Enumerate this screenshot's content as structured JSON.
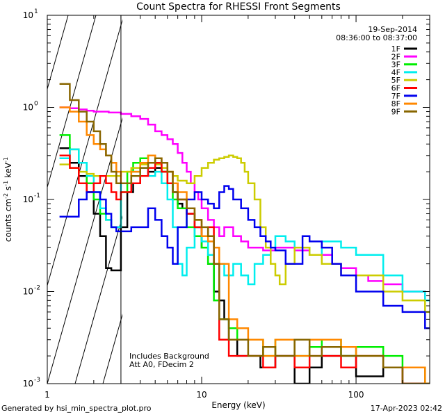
{
  "chart_data": {
    "type": "line",
    "title": "Count Spectra for RHESSI Front Segments",
    "xlabel": "Energy (keV)",
    "ylabel_parts": [
      "counts cm",
      "-2",
      " s",
      "-1",
      " keV",
      "-1"
    ],
    "xscale": "log",
    "yscale": "log",
    "xlim": [
      1,
      300
    ],
    "ylim": [
      0.001,
      10
    ],
    "x_ticks": [
      {
        "value": 1,
        "label": "1"
      },
      {
        "value": 10,
        "label": "10"
      },
      {
        "value": 100,
        "label": "100"
      }
    ],
    "y_ticks": [
      {
        "value": 0.001,
        "base": "10",
        "exp": "-3"
      },
      {
        "value": 0.01,
        "base": "10",
        "exp": "-2"
      },
      {
        "value": 0.1,
        "base": "10",
        "exp": "-1"
      },
      {
        "value": 1,
        "base": "10",
        "exp": "0"
      },
      {
        "value": 10,
        "base": "10",
        "exp": "1"
      }
    ],
    "hatched_region": [
      1,
      3
    ],
    "date": "19-Sep-2014",
    "time_range": "08:36:00 to 08:37:00",
    "annotations": [
      "Includes Background",
      "Att A0, FDecim 2"
    ],
    "series": [
      {
        "name": "1F",
        "color": "#000000",
        "x": [
          1.2,
          1.4,
          1.6,
          1.8,
          2.0,
          2.2,
          2.4,
          2.6,
          2.8,
          3.0,
          3.3,
          3.6,
          4.0,
          4.5,
          5.0,
          5.5,
          6.0,
          6.5,
          7.0,
          7.5,
          8.0,
          9.0,
          10,
          11,
          12,
          13,
          14,
          15,
          17,
          20,
          24,
          30,
          40,
          50,
          60,
          80,
          100,
          150,
          200,
          280
        ],
        "y": [
          0.36,
          0.25,
          0.18,
          0.12,
          0.07,
          0.04,
          0.018,
          0.017,
          0.017,
          0.05,
          0.12,
          0.15,
          0.18,
          0.2,
          0.22,
          0.2,
          0.15,
          0.12,
          0.09,
          0.08,
          0.07,
          0.05,
          0.03,
          0.02,
          0.01,
          0.008,
          0.005,
          0.003,
          0.002,
          0.002,
          0.0015,
          0.002,
          0.001,
          0.0015,
          0.002,
          0.002,
          0.0012,
          0.0015,
          0.001,
          0.001
        ]
      },
      {
        "name": "2F",
        "color": "#ff00ff",
        "x": [
          1.2,
          1.4,
          1.6,
          1.8,
          2.0,
          2.5,
          3.0,
          3.5,
          4.0,
          4.5,
          5.0,
          5.5,
          6.0,
          6.5,
          7.0,
          7.5,
          8.0,
          8.5,
          9.0,
          9.5,
          10,
          11,
          12,
          13,
          14,
          16,
          18,
          20,
          22,
          25,
          30,
          35,
          40,
          50,
          60,
          70,
          80,
          100,
          120,
          150,
          200,
          280
        ],
        "y": [
          1.0,
          0.98,
          0.95,
          0.92,
          0.9,
          0.88,
          0.85,
          0.8,
          0.75,
          0.65,
          0.55,
          0.5,
          0.45,
          0.4,
          0.32,
          0.25,
          0.2,
          0.15,
          0.12,
          0.1,
          0.08,
          0.06,
          0.05,
          0.04,
          0.05,
          0.04,
          0.035,
          0.03,
          0.03,
          0.028,
          0.03,
          0.03,
          0.028,
          0.025,
          0.025,
          0.02,
          0.018,
          0.015,
          0.013,
          0.012,
          0.01,
          0.008
        ]
      },
      {
        "name": "3F",
        "color": "#00ee00",
        "x": [
          1.2,
          1.4,
          1.6,
          1.8,
          2.0,
          2.2,
          2.4,
          2.6,
          2.8,
          3.0,
          3.3,
          3.6,
          4.0,
          4.5,
          5.0,
          5.5,
          6.0,
          6.5,
          7.0,
          8.0,
          9.0,
          10,
          11,
          12,
          13,
          15,
          17,
          20,
          25,
          30,
          40,
          50,
          60,
          80,
          100,
          150,
          200,
          280
        ],
        "y": [
          0.5,
          0.35,
          0.25,
          0.15,
          0.1,
          0.07,
          0.06,
          0.05,
          0.05,
          0.12,
          0.2,
          0.25,
          0.28,
          0.3,
          0.25,
          0.2,
          0.15,
          0.1,
          0.08,
          0.05,
          0.04,
          0.03,
          0.02,
          0.008,
          0.005,
          0.004,
          0.003,
          0.003,
          0.002,
          0.003,
          0.002,
          0.0025,
          0.003,
          0.002,
          0.0025,
          0.002,
          0.0015,
          0.001
        ]
      },
      {
        "name": "4F",
        "color": "#00eeee",
        "x": [
          1.2,
          1.4,
          1.6,
          1.8,
          2.0,
          2.2,
          2.4,
          2.6,
          2.8,
          3.0,
          3.5,
          4.0,
          4.5,
          5.0,
          5.5,
          6.0,
          6.5,
          7.0,
          7.5,
          8.0,
          9.0,
          10,
          11,
          12,
          14,
          16,
          18,
          20,
          22,
          25,
          28,
          30,
          35,
          40,
          50,
          60,
          80,
          100,
          150,
          200,
          280
        ],
        "y": [
          0.28,
          0.35,
          0.25,
          0.18,
          0.12,
          0.08,
          0.06,
          0.05,
          0.05,
          0.15,
          0.2,
          0.22,
          0.18,
          0.2,
          0.15,
          0.1,
          0.05,
          0.02,
          0.015,
          0.03,
          0.05,
          0.035,
          0.025,
          0.02,
          0.015,
          0.02,
          0.015,
          0.012,
          0.02,
          0.025,
          0.03,
          0.04,
          0.035,
          0.03,
          0.025,
          0.035,
          0.03,
          0.025,
          0.015,
          0.01,
          0.008
        ]
      },
      {
        "name": "5F",
        "color": "#cccc00",
        "x": [
          1.2,
          1.4,
          1.6,
          1.8,
          2.0,
          2.5,
          3.0,
          3.5,
          4.0,
          4.5,
          5.0,
          5.5,
          6.0,
          6.5,
          7.0,
          8.0,
          9.0,
          10,
          11,
          12,
          13,
          14,
          15,
          16,
          17,
          18,
          19,
          20,
          22,
          24,
          26,
          28,
          30,
          32,
          35,
          40,
          50,
          60,
          80,
          100,
          150,
          200,
          280
        ],
        "y": [
          0.24,
          0.22,
          0.2,
          0.19,
          0.18,
          0.18,
          0.2,
          0.22,
          0.24,
          0.25,
          0.24,
          0.22,
          0.2,
          0.18,
          0.16,
          0.15,
          0.18,
          0.22,
          0.25,
          0.27,
          0.28,
          0.29,
          0.3,
          0.29,
          0.28,
          0.25,
          0.2,
          0.15,
          0.1,
          0.05,
          0.03,
          0.02,
          0.015,
          0.012,
          0.02,
          0.03,
          0.025,
          0.02,
          0.015,
          0.015,
          0.01,
          0.008,
          0.006
        ]
      },
      {
        "name": "6F",
        "color": "#ff0000",
        "x": [
          1.2,
          1.4,
          1.6,
          1.8,
          2.0,
          2.2,
          2.4,
          2.6,
          2.8,
          3.0,
          3.5,
          4.0,
          4.5,
          5.0,
          5.5,
          6.0,
          7.0,
          8.0,
          9.0,
          10,
          11,
          12,
          13,
          15,
          17,
          20,
          25,
          30,
          40,
          50,
          60,
          80,
          100,
          150,
          200,
          280
        ],
        "y": [
          0.3,
          0.22,
          0.15,
          0.12,
          0.15,
          0.18,
          0.15,
          0.12,
          0.1,
          0.12,
          0.15,
          0.18,
          0.22,
          0.25,
          0.2,
          0.15,
          0.1,
          0.07,
          0.05,
          0.04,
          0.05,
          0.02,
          0.003,
          0.002,
          0.002,
          0.002,
          0.0015,
          0.002,
          0.0015,
          0.002,
          0.002,
          0.0015,
          0.002,
          0.0015,
          0.001,
          0.001
        ]
      },
      {
        "name": "7F",
        "color": "#0000ee",
        "x": [
          1.2,
          1.4,
          1.6,
          1.8,
          2.0,
          2.2,
          2.4,
          2.6,
          2.8,
          3.0,
          3.5,
          4.0,
          4.5,
          5.0,
          5.5,
          6.0,
          6.5,
          7.0,
          8.0,
          9.0,
          10,
          11,
          12,
          13,
          14,
          15,
          16,
          18,
          20,
          22,
          24,
          26,
          28,
          30,
          35,
          40,
          45,
          50,
          60,
          70,
          80,
          100,
          150,
          200,
          280
        ],
        "y": [
          0.065,
          0.065,
          0.1,
          0.12,
          0.12,
          0.1,
          0.07,
          0.05,
          0.045,
          0.045,
          0.05,
          0.05,
          0.08,
          0.06,
          0.04,
          0.03,
          0.02,
          0.05,
          0.1,
          0.12,
          0.1,
          0.09,
          0.08,
          0.12,
          0.14,
          0.13,
          0.1,
          0.08,
          0.06,
          0.05,
          0.04,
          0.035,
          0.03,
          0.028,
          0.02,
          0.02,
          0.04,
          0.035,
          0.03,
          0.02,
          0.015,
          0.01,
          0.007,
          0.006,
          0.004
        ]
      },
      {
        "name": "8F",
        "color": "#ff8800",
        "x": [
          1.2,
          1.4,
          1.6,
          1.8,
          2.0,
          2.2,
          2.4,
          2.6,
          2.8,
          3.0,
          3.5,
          4.0,
          4.5,
          5.0,
          5.5,
          6.0,
          6.5,
          7.0,
          8.0,
          9.0,
          10,
          11,
          12,
          13,
          15,
          17,
          20,
          25,
          30,
          40,
          50,
          60,
          80,
          100,
          150,
          200,
          280
        ],
        "y": [
          1.0,
          0.9,
          0.7,
          0.5,
          0.4,
          0.35,
          0.3,
          0.25,
          0.2,
          0.15,
          0.2,
          0.25,
          0.3,
          0.28,
          0.25,
          0.2,
          0.15,
          0.12,
          0.08,
          0.06,
          0.04,
          0.035,
          0.03,
          0.02,
          0.005,
          0.004,
          0.003,
          0.002,
          0.003,
          0.002,
          0.003,
          0.003,
          0.0025,
          0.002,
          0.0015,
          0.0015,
          0.001
        ]
      },
      {
        "name": "9F",
        "color": "#886600",
        "x": [
          1.2,
          1.4,
          1.6,
          1.8,
          2.0,
          2.2,
          2.4,
          2.6,
          2.8,
          3.0,
          3.5,
          4.0,
          4.5,
          5.0,
          5.5,
          6.0,
          6.5,
          7.0,
          8.0,
          9.0,
          10,
          11,
          12,
          13,
          15,
          17,
          20,
          25,
          30,
          40,
          50,
          60,
          80,
          100,
          150,
          200,
          280
        ],
        "y": [
          1.8,
          1.2,
          0.9,
          0.7,
          0.55,
          0.4,
          0.3,
          0.2,
          0.15,
          0.15,
          0.18,
          0.22,
          0.25,
          0.28,
          0.25,
          0.2,
          0.12,
          0.1,
          0.08,
          0.06,
          0.05,
          0.04,
          0.02,
          0.005,
          0.003,
          0.003,
          0.002,
          0.0025,
          0.002,
          0.003,
          0.002,
          0.0025,
          0.002,
          0.002,
          0.0015,
          0.001,
          0.001
        ]
      }
    ]
  },
  "footer": {
    "generated_by": "Generated by hsi_min_spectra_plot.pro",
    "timestamp": "17-Apr-2023 02:42"
  }
}
